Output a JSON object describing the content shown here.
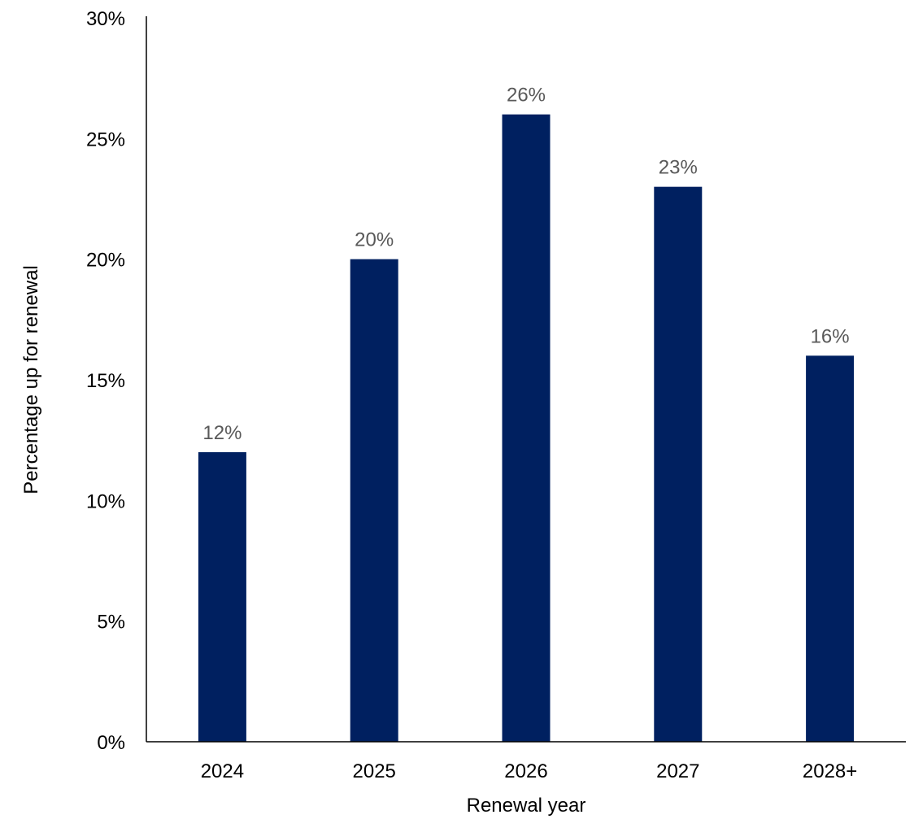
{
  "chart_data": {
    "type": "bar",
    "categories": [
      "2024",
      "2025",
      "2026",
      "2027",
      "2028+"
    ],
    "values": [
      12,
      20,
      26,
      23,
      16
    ],
    "data_labels": [
      "12%",
      "20%",
      "26%",
      "23%",
      "16%"
    ],
    "y_ticks": [
      {
        "value": 0,
        "label": "0%"
      },
      {
        "value": 5,
        "label": "5%"
      },
      {
        "value": 10,
        "label": "10%"
      },
      {
        "value": 15,
        "label": "15%"
      },
      {
        "value": 20,
        "label": "20%"
      },
      {
        "value": 25,
        "label": "25%"
      },
      {
        "value": 30,
        "label": "30%"
      }
    ],
    "ylim": [
      0,
      30
    ],
    "xlabel": "Renewal year",
    "ylabel": "Percentage up for renewal",
    "grid": false,
    "legend": "none",
    "colors": {
      "bar": "#002060",
      "data_label": "#595959",
      "axis": "#000000"
    }
  }
}
